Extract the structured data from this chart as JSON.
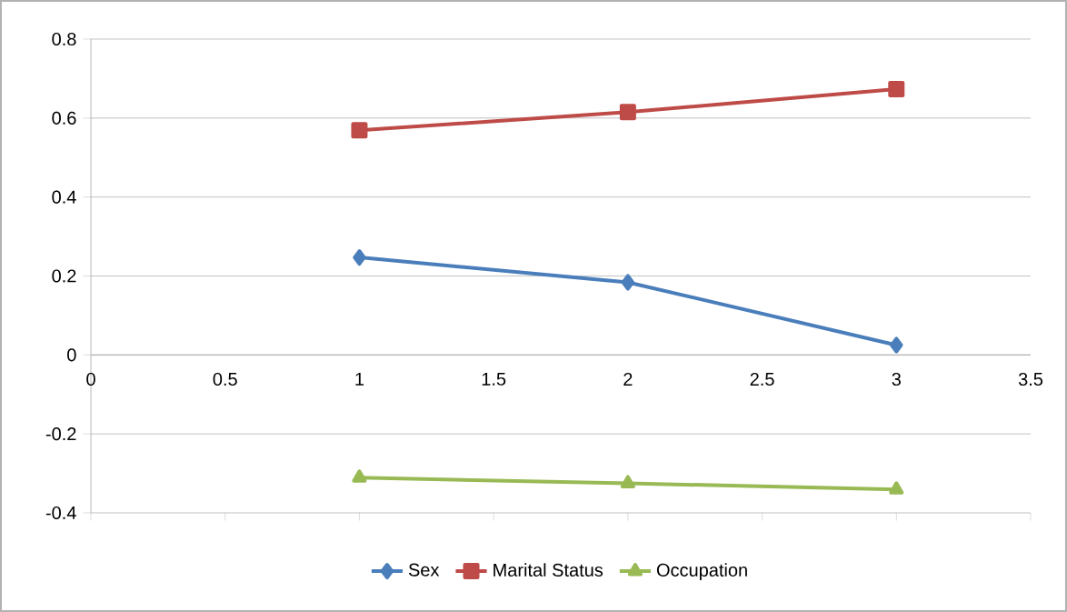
{
  "chart_data": {
    "type": "line",
    "x": [
      1,
      2,
      3
    ],
    "series": [
      {
        "name": "Sex",
        "color": "#4a7ebb",
        "marker": "diamond",
        "values": [
          0.247,
          0.184,
          0.025
        ]
      },
      {
        "name": "Marital Status",
        "color": "#be4b48",
        "marker": "square",
        "values": [
          0.569,
          0.615,
          0.673
        ]
      },
      {
        "name": "Occupation",
        "color": "#98b954",
        "marker": "triangle",
        "values": [
          -0.311,
          -0.325,
          -0.341
        ]
      }
    ],
    "xlim": [
      0,
      3.5
    ],
    "xticks": [
      0,
      0.5,
      1,
      1.5,
      2,
      2.5,
      3,
      3.5
    ],
    "ylim": [
      -0.4,
      0.8
    ],
    "yticks": [
      -0.4,
      -0.2,
      0,
      0.2,
      0.4,
      0.6,
      0.8
    ],
    "grid": "y",
    "legend": "bottom",
    "line_style": "solid"
  }
}
